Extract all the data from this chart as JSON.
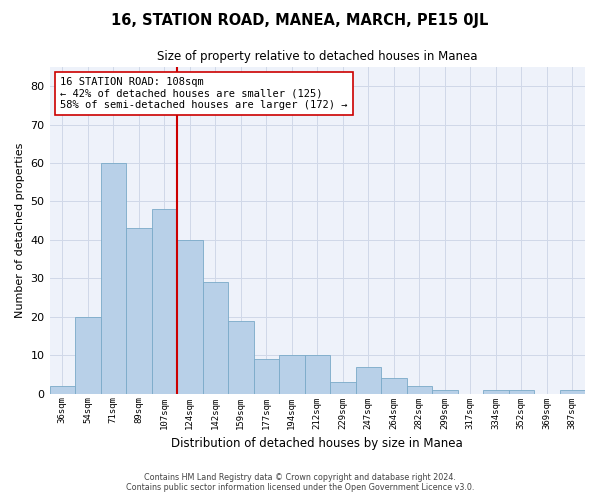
{
  "title": "16, STATION ROAD, MANEA, MARCH, PE15 0JL",
  "subtitle": "Size of property relative to detached houses in Manea",
  "xlabel": "Distribution of detached houses by size in Manea",
  "ylabel": "Number of detached properties",
  "bar_labels": [
    "36sqm",
    "54sqm",
    "71sqm",
    "89sqm",
    "107sqm",
    "124sqm",
    "142sqm",
    "159sqm",
    "177sqm",
    "194sqm",
    "212sqm",
    "229sqm",
    "247sqm",
    "264sqm",
    "282sqm",
    "299sqm",
    "317sqm",
    "334sqm",
    "352sqm",
    "369sqm",
    "387sqm"
  ],
  "bar_values": [
    2,
    20,
    60,
    43,
    48,
    40,
    29,
    19,
    9,
    10,
    10,
    3,
    7,
    4,
    2,
    1,
    0,
    1,
    1,
    0,
    1
  ],
  "bar_color": "#b8d0e8",
  "bar_edge_color": "#7aaac8",
  "vline_x": 4,
  "vline_color": "#cc0000",
  "annotation_text": "16 STATION ROAD: 108sqm\n← 42% of detached houses are smaller (125)\n58% of semi-detached houses are larger (172) →",
  "annotation_box_color": "#ffffff",
  "annotation_box_edge": "#cc0000",
  "ylim": [
    0,
    85
  ],
  "yticks": [
    0,
    10,
    20,
    30,
    40,
    50,
    60,
    70,
    80
  ],
  "grid_color": "#d0d8e8",
  "bg_color": "#eef2fa",
  "footer1": "Contains HM Land Registry data © Crown copyright and database right 2024.",
  "footer2": "Contains public sector information licensed under the Open Government Licence v3.0."
}
